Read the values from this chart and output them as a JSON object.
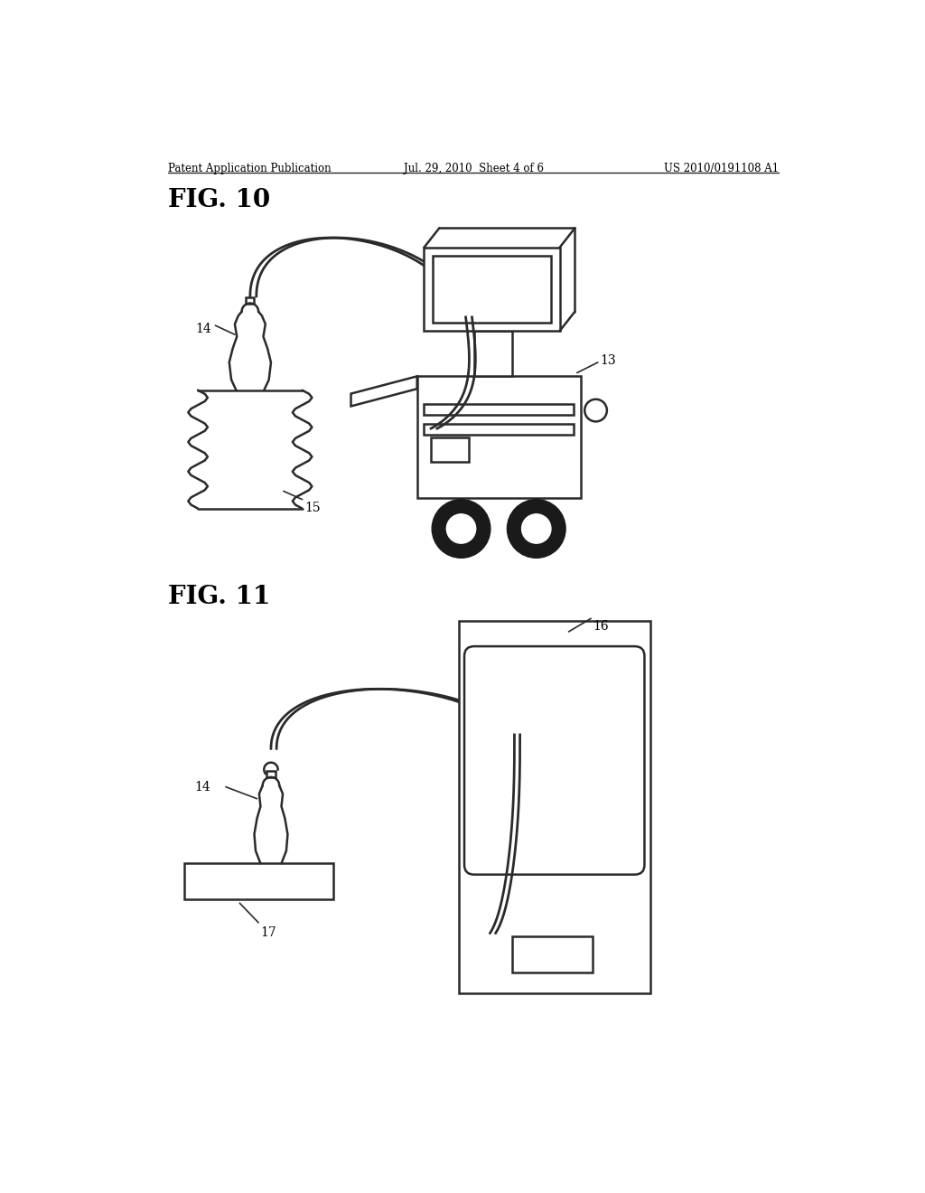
{
  "bg_color": "#ffffff",
  "line_color": "#2a2a2a",
  "header_left": "Patent Application Publication",
  "header_center": "Jul. 29, 2010  Sheet 4 of 6",
  "header_right": "US 2010/0191108 A1",
  "fig10_label": "FIG. 10",
  "fig11_label": "FIG. 11",
  "label_13": "13",
  "label_14": "14",
  "label_15": "15",
  "label_16": "16",
  "label_17": "17"
}
